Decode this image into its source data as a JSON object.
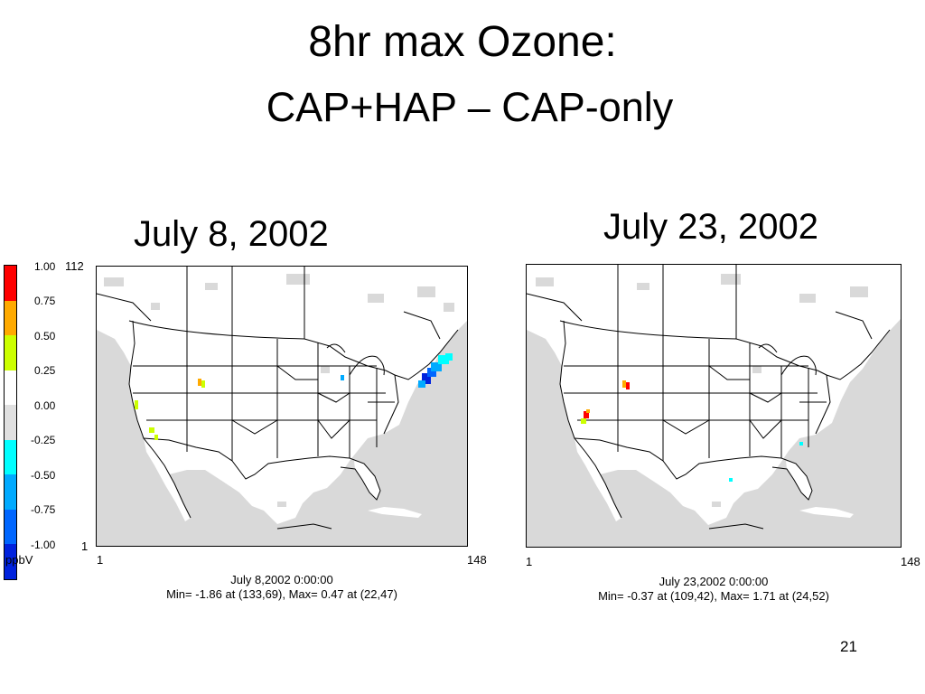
{
  "slide": {
    "title_line1": "8hr max Ozone:",
    "title_line2": "CAP+HAP – CAP-only",
    "page_number": "21"
  },
  "colorbar": {
    "ticks": [
      "1.00",
      "0.75",
      "0.50",
      "0.25",
      "0.00",
      "-0.25",
      "-0.50",
      "-0.75",
      "-1.00"
    ],
    "unit": "ppbV",
    "colors": [
      "#ff0000",
      "#ffaa00",
      "#ccff00",
      "#ffffff",
      "#e0e0e0",
      "#00ffff",
      "#00aaff",
      "#0066ff",
      "#0022dd"
    ]
  },
  "panels": [
    {
      "date_label": "July 8, 2002",
      "y_top": "112",
      "y_bottom": "1",
      "x_left": "1",
      "x_right": "148",
      "caption_line1": "July 8,2002 0:00:00",
      "caption_line2": "Min=   -1.86 at (133,69), Max=    0.47 at (22,47)"
    },
    {
      "date_label": "July 23, 2002",
      "x_left": "1",
      "x_right": "148",
      "caption_line1": "July 23,2002 0:00:00",
      "caption_line2": "Min=   -0.37 at (109,42), Max=    1.71 at (24,52)"
    }
  ]
}
